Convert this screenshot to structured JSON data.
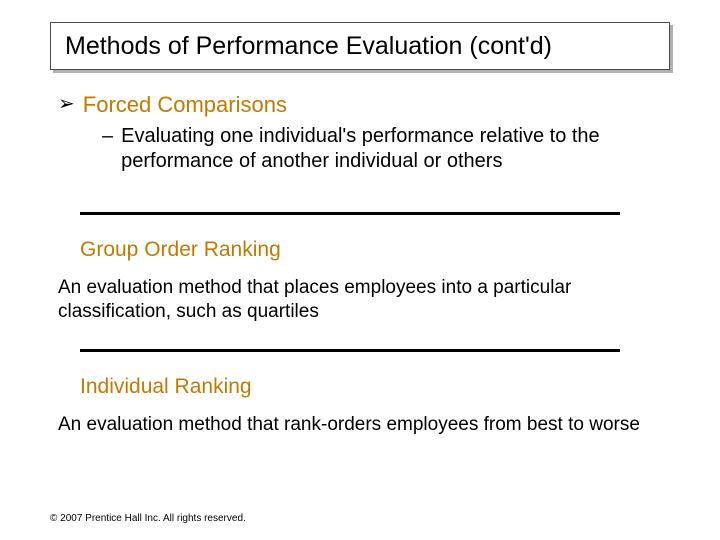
{
  "title": "Methods of Performance Evaluation (cont'd)",
  "colors": {
    "heading_orange": "#c17a00",
    "body_black": "#000000",
    "title_border": "#4a4a4a",
    "title_shadow": "#b0b0b0",
    "background": "#ffffff",
    "divider": "#000000"
  },
  "fonts": {
    "title_size": 25,
    "main_bullet_size": 22,
    "sub_bullet_size": 20,
    "def_title_size": 21,
    "def_body_size": 19,
    "footer_size": 10
  },
  "main_bullet": {
    "marker": "➢",
    "text": "Forced Comparisons"
  },
  "sub_bullet": {
    "marker": "–",
    "text": "Evaluating one individual's performance relative to the performance of another individual or others"
  },
  "definitions": [
    {
      "title": "Group Order Ranking",
      "body": "An evaluation method that places employees into a particular classification, such as quartiles"
    },
    {
      "title": "Individual Ranking",
      "body": "An evaluation method that rank-orders employees from best to worse"
    }
  ],
  "footer": "© 2007 Prentice Hall Inc. All rights reserved."
}
